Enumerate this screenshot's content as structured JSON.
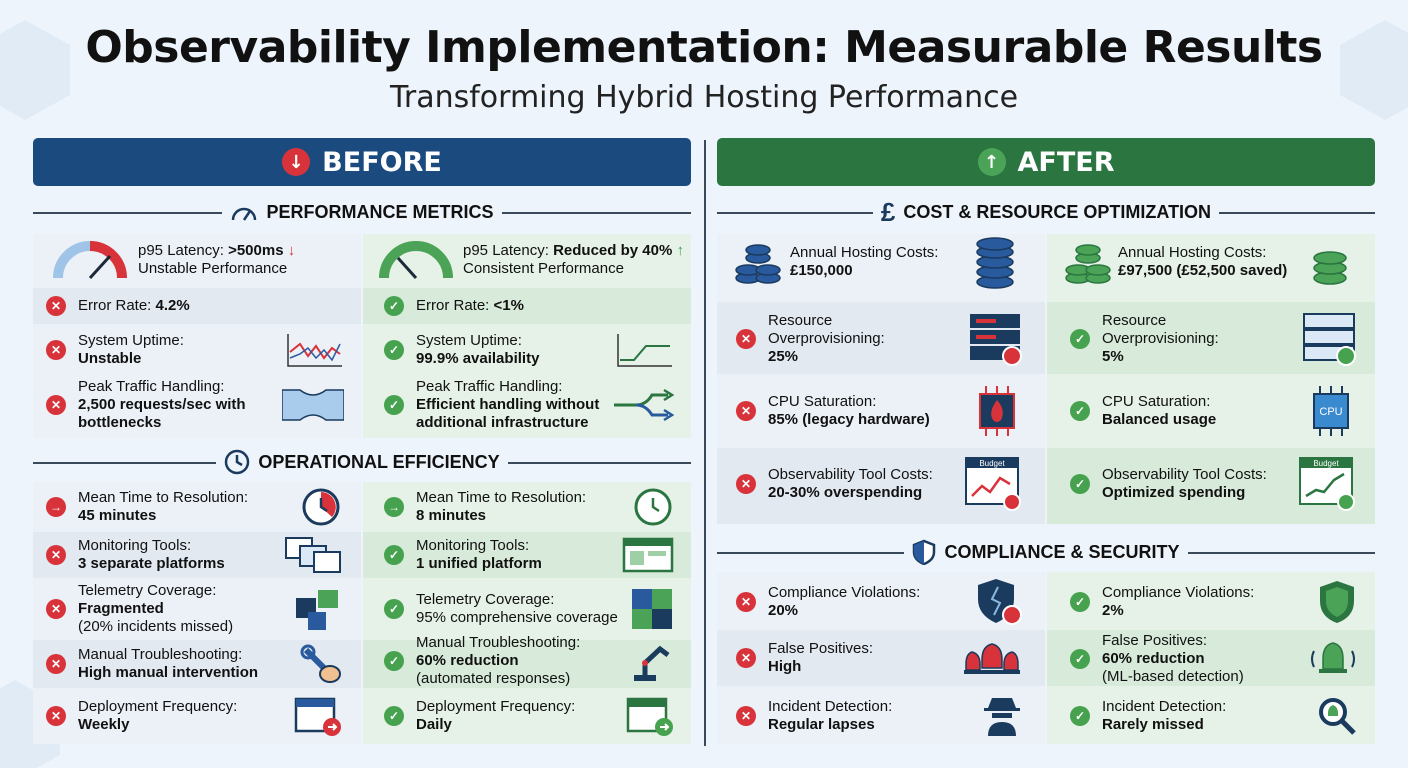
{
  "title": "Observability Implementation: Measurable Results",
  "subtitle": "Transforming Hybrid Hosting Performance",
  "before_label": "BEFORE",
  "after_label": "AFTER",
  "sections": {
    "perf": "PERFORMANCE METRICS",
    "ops": "OPERATIONAL EFFICIENCY",
    "cost": "COST & RESOURCE OPTIMIZATION",
    "comp": "COMPLIANCE & SECURITY"
  },
  "perf_before": {
    "latency_label": "p95 Latency: ",
    "latency_value": ">500ms",
    "latency_sub": "Unstable Performance",
    "error_label": "Error Rate: ",
    "error_value": "4.2%",
    "uptime_label": "System Uptime:",
    "uptime_value": "Unstable",
    "traffic_label": "Peak Traffic Handling:",
    "traffic_value": "2,500 requests/sec with bottlenecks"
  },
  "perf_after": {
    "latency_label": "p95 Latency: ",
    "latency_value": "Reduced by 40%",
    "latency_sub": "Consistent Performance",
    "error_label": "Error Rate: ",
    "error_value": "<1%",
    "uptime_label": "System Uptime:",
    "uptime_value": "99.9% availability",
    "traffic_label": "Peak Traffic Handling:",
    "traffic_value": "Efficient handling without additional infrastructure"
  },
  "ops_before": [
    {
      "label": "Mean Time to Resolution:",
      "value": "45 minutes",
      "note": ""
    },
    {
      "label": "Monitoring Tools:",
      "value": "3 separate platforms",
      "note": ""
    },
    {
      "label": "Telemetry Coverage:",
      "value": "Fragmented",
      "note": "(20% incidents missed)"
    },
    {
      "label": "Manual Troubleshooting:",
      "value": "High manual intervention",
      "note": ""
    },
    {
      "label": "Deployment Frequency:",
      "value": "Weekly",
      "note": ""
    }
  ],
  "ops_after": [
    {
      "label": "Mean Time to Resolution:",
      "value": "8 minutes",
      "note": ""
    },
    {
      "label": "Monitoring Tools:",
      "value": "1 unified platform",
      "note": ""
    },
    {
      "label": "Telemetry Coverage:",
      "value": "95% comprehensive coverage",
      "note": ""
    },
    {
      "label": "Manual Troubleshooting:",
      "value": "60% reduction",
      "note": "(automated responses)"
    },
    {
      "label": "Deployment Frequency:",
      "value": "Daily",
      "note": ""
    }
  ],
  "cost_before": [
    {
      "label": "Annual Hosting Costs:",
      "value": "£150,000"
    },
    {
      "label": "Resource Overprovisioning:",
      "value": "25%"
    },
    {
      "label": "CPU Saturation:",
      "value": "85% (legacy hardware)"
    },
    {
      "label": "Observability Tool Costs:",
      "value": "20-30% overspending"
    }
  ],
  "cost_after": [
    {
      "label": "Annual Hosting Costs:",
      "value": "£97,500 (£52,500 saved)"
    },
    {
      "label": "Resource Overprovisioning:",
      "value": "5%"
    },
    {
      "label": "CPU Saturation:",
      "value": "Balanced usage"
    },
    {
      "label": "Observability Tool Costs:",
      "value": "Optimized spending"
    }
  ],
  "comp_before": [
    {
      "label": "Compliance Violations:",
      "value": "20%"
    },
    {
      "label": "False Positives:",
      "value": "High"
    },
    {
      "label": "Incident Detection:",
      "value": "Regular lapses"
    }
  ],
  "comp_after": [
    {
      "label": "Compliance Violations:",
      "value": "2%"
    },
    {
      "label": "False Positives:",
      "value": "60% reduction",
      "note": "(ML-based detection)"
    },
    {
      "label": "Incident Detection:",
      "value": "Rarely missed"
    }
  ],
  "icon_text": {
    "budget": "Budget",
    "cpu": "CPU"
  },
  "colors": {
    "before": "#1a4a7e",
    "after": "#2a7540",
    "bad": "#d8333a",
    "good": "#46a24f"
  }
}
